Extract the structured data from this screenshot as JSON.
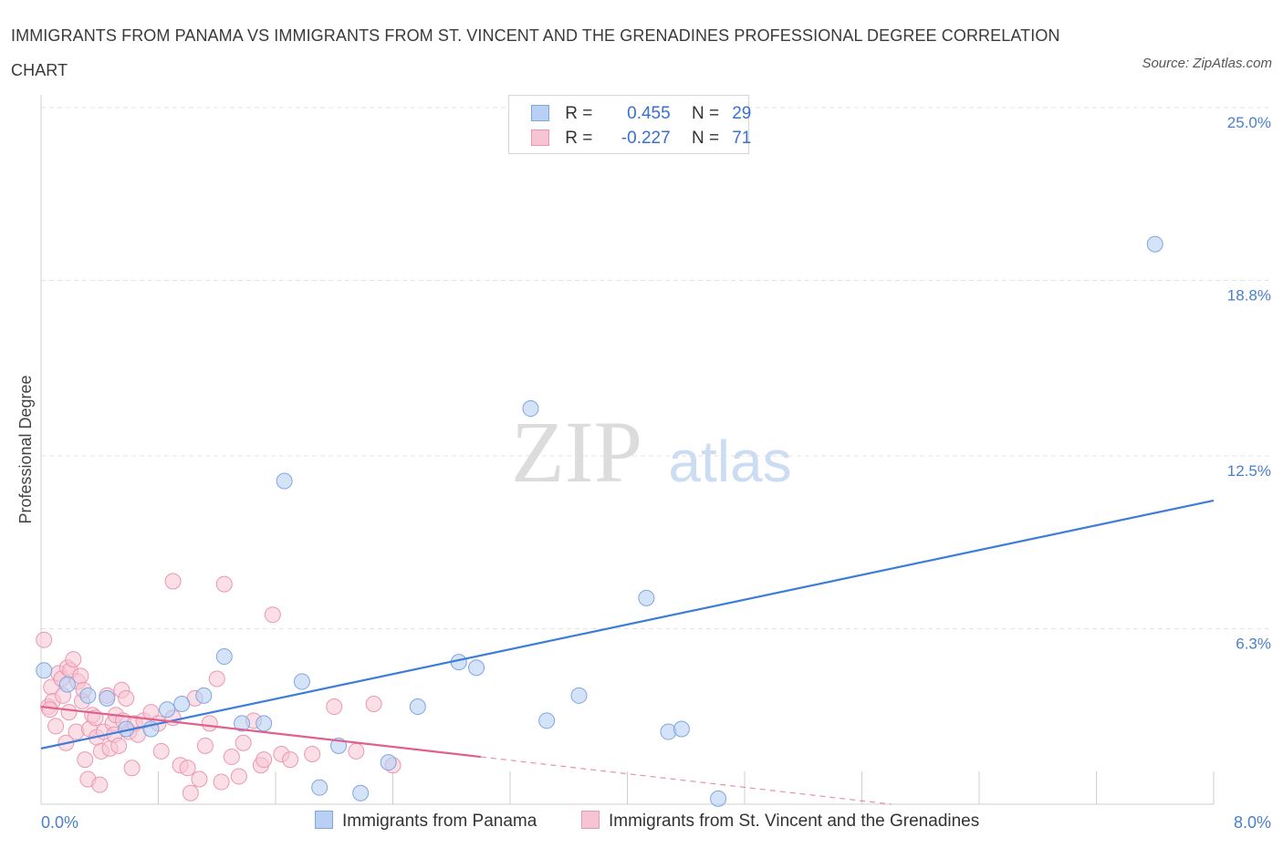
{
  "header": {
    "title": "IMMIGRANTS FROM PANAMA VS IMMIGRANTS FROM ST. VINCENT AND THE GRENADINES PROFESSIONAL DEGREE CORRELATION CHART",
    "source": "Source: ZipAtlas.com"
  },
  "watermark": {
    "zip": "ZIP",
    "atlas": "atlas"
  },
  "legend": {
    "r_label": "R =",
    "n_label": "N =",
    "rows": [
      {
        "r": "0.455",
        "n": "29"
      },
      {
        "r": "-0.227",
        "n": "71"
      }
    ]
  },
  "colors": {
    "blue_fill": "#b8d0f4",
    "blue_stroke": "#7fa6e0",
    "blue_line": "#3b7dd8",
    "pink_fill": "#f7c4d3",
    "pink_stroke": "#eb97b1",
    "pink_line": "#e0608c",
    "axis_text": "#4a7fcc",
    "grid": "#e3e3e3"
  },
  "chart_data": {
    "type": "scatter",
    "title": "IMMIGRANTS FROM PANAMA VS IMMIGRANTS FROM ST. VINCENT AND THE GRENADINES PROFESSIONAL DEGREE CORRELATION CHART",
    "ylabel": "Professional Degree",
    "xlabel": "",
    "xlim": [
      0,
      8.0
    ],
    "ylim": [
      0,
      25.0
    ],
    "x_tick_labels": [
      "0.0%",
      "8.0%"
    ],
    "y_ticks": [
      6.3,
      12.5,
      18.8,
      25.0
    ],
    "y_tick_labels": [
      "6.3%",
      "12.5%",
      "18.8%",
      "25.0%"
    ],
    "grid": true,
    "legend_position": "top-center",
    "series": [
      {
        "name": "Immigrants from Panama",
        "color": "#b8d0f4",
        "r": 0.455,
        "n": 29,
        "trend": {
          "x": [
            0.0,
            8.0
          ],
          "y": [
            2.0,
            10.9
          ]
        },
        "points": [
          [
            0.02,
            4.8
          ],
          [
            0.18,
            4.3
          ],
          [
            0.32,
            3.9
          ],
          [
            0.45,
            3.8
          ],
          [
            0.58,
            2.7
          ],
          [
            0.75,
            2.7
          ],
          [
            0.86,
            3.4
          ],
          [
            0.96,
            3.6
          ],
          [
            1.11,
            3.9
          ],
          [
            1.25,
            5.3
          ],
          [
            1.37,
            2.9
          ],
          [
            1.52,
            2.9
          ],
          [
            1.66,
            11.6
          ],
          [
            1.78,
            4.4
          ],
          [
            1.9,
            0.6
          ],
          [
            2.03,
            2.1
          ],
          [
            2.18,
            0.4
          ],
          [
            2.37,
            1.5
          ],
          [
            2.57,
            3.5
          ],
          [
            2.85,
            5.1
          ],
          [
            2.97,
            4.9
          ],
          [
            3.45,
            3.0
          ],
          [
            3.67,
            3.9
          ],
          [
            4.13,
            7.4
          ],
          [
            4.28,
            2.6
          ],
          [
            4.37,
            2.7
          ],
          [
            4.62,
            0.2
          ],
          [
            3.34,
            14.2
          ],
          [
            7.6,
            20.1
          ]
        ]
      },
      {
        "name": "Immigrants from St. Vincent and the Grenadines",
        "color": "#f7c4d3",
        "r": -0.227,
        "n": 71,
        "trend": {
          "x": [
            0.0,
            3.0
          ],
          "y": [
            3.5,
            1.7
          ]
        },
        "trend_extension": {
          "x": [
            3.0,
            5.8
          ],
          "y": [
            1.7,
            0.0
          ]
        },
        "points": [
          [
            0.02,
            5.9
          ],
          [
            0.05,
            3.5
          ],
          [
            0.07,
            4.2
          ],
          [
            0.08,
            3.7
          ],
          [
            0.1,
            2.8
          ],
          [
            0.12,
            4.7
          ],
          [
            0.14,
            4.5
          ],
          [
            0.15,
            3.9
          ],
          [
            0.17,
            2.2
          ],
          [
            0.18,
            4.9
          ],
          [
            0.19,
            3.3
          ],
          [
            0.2,
            4.8
          ],
          [
            0.22,
            5.2
          ],
          [
            0.24,
            2.6
          ],
          [
            0.25,
            4.4
          ],
          [
            0.27,
            4.6
          ],
          [
            0.28,
            3.7
          ],
          [
            0.29,
            4.1
          ],
          [
            0.3,
            1.6
          ],
          [
            0.32,
            0.9
          ],
          [
            0.33,
            2.7
          ],
          [
            0.35,
            3.2
          ],
          [
            0.37,
            3.1
          ],
          [
            0.38,
            2.4
          ],
          [
            0.4,
            0.7
          ],
          [
            0.41,
            1.9
          ],
          [
            0.43,
            2.6
          ],
          [
            0.45,
            3.9
          ],
          [
            0.47,
            2.0
          ],
          [
            0.49,
            2.9
          ],
          [
            0.5,
            2.5
          ],
          [
            0.51,
            3.2
          ],
          [
            0.53,
            2.1
          ],
          [
            0.55,
            4.1
          ],
          [
            0.56,
            3.0
          ],
          [
            0.58,
            3.8
          ],
          [
            0.6,
            2.6
          ],
          [
            0.62,
            1.3
          ],
          [
            0.64,
            2.9
          ],
          [
            0.66,
            2.5
          ],
          [
            0.7,
            3.0
          ],
          [
            0.75,
            3.3
          ],
          [
            0.8,
            2.9
          ],
          [
            0.82,
            1.9
          ],
          [
            0.9,
            3.1
          ],
          [
            0.95,
            1.4
          ],
          [
            1.0,
            1.3
          ],
          [
            1.02,
            0.4
          ],
          [
            1.05,
            3.8
          ],
          [
            1.08,
            0.9
          ],
          [
            1.12,
            2.1
          ],
          [
            1.15,
            2.9
          ],
          [
            1.2,
            4.5
          ],
          [
            1.23,
            0.8
          ],
          [
            1.25,
            7.9
          ],
          [
            1.3,
            1.7
          ],
          [
            1.35,
            1.0
          ],
          [
            1.38,
            2.2
          ],
          [
            1.45,
            3.0
          ],
          [
            1.5,
            1.4
          ],
          [
            1.52,
            1.6
          ],
          [
            1.58,
            6.8
          ],
          [
            1.64,
            1.8
          ],
          [
            1.7,
            1.6
          ],
          [
            1.85,
            1.8
          ],
          [
            2.0,
            3.5
          ],
          [
            2.15,
            1.9
          ],
          [
            2.27,
            3.6
          ],
          [
            2.4,
            1.4
          ],
          [
            0.9,
            8.0
          ],
          [
            0.06,
            3.4
          ]
        ]
      }
    ]
  },
  "bottom_legend": {
    "items": [
      {
        "label": "Immigrants from Panama"
      },
      {
        "label": "Immigrants from St. Vincent and the Grenadines"
      }
    ]
  }
}
